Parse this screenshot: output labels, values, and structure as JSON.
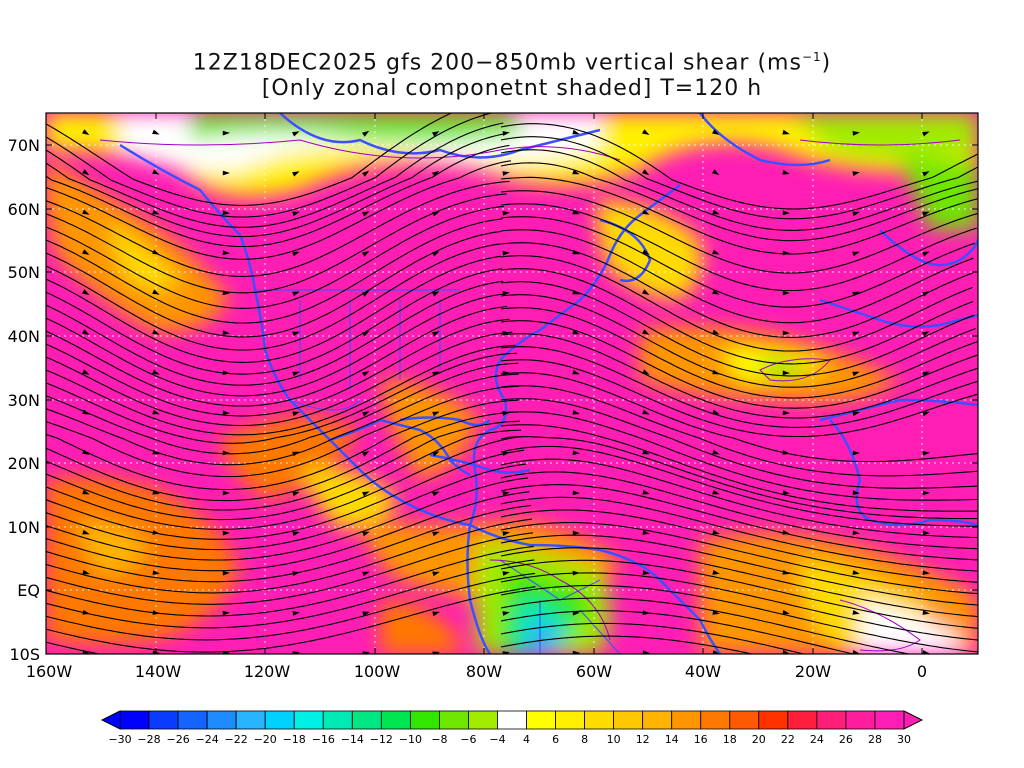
{
  "title": {
    "line1_prefix": "12Z18DEC2025 gfs 200−850mb vertical shear (ms",
    "line1_sup": "−1",
    "line1_suffix": ")",
    "line2": "[Only zonal componetnt shaded] T=120 h"
  },
  "lat_labels": [
    "70N",
    "60N",
    "50N",
    "40N",
    "30N",
    "20N",
    "10N",
    "EQ",
    "10S"
  ],
  "lon_labels": [
    "160W",
    "140W",
    "120W",
    "100W",
    "80W",
    "60W",
    "40W",
    "20W",
    "0"
  ],
  "colorbar": {
    "labels": [
      "-30",
      "-28",
      "-26",
      "-24",
      "-22",
      "-20",
      "-18",
      "-16",
      "-14",
      "-12",
      "-10",
      "-8",
      "-6",
      "-4",
      "4",
      "6",
      "8",
      "10",
      "12",
      "14",
      "16",
      "18",
      "20",
      "22",
      "24",
      "26",
      "28",
      "30"
    ],
    "colors": [
      "#0000ff",
      "#0a3cff",
      "#1464ff",
      "#1e8cff",
      "#28b4ff",
      "#00d2ff",
      "#00f0e6",
      "#00ebb4",
      "#00e682",
      "#00e650",
      "#32e600",
      "#6ee600",
      "#a0eb00",
      "#ffffff",
      "#ffff00",
      "#fff000",
      "#ffdc00",
      "#ffc800",
      "#ffb400",
      "#ff9600",
      "#ff7800",
      "#ff5a00",
      "#ff3200",
      "#ff1e3c",
      "#ff1e78",
      "#ff1e9e",
      "#ff1eb4"
    ],
    "under_color": "#0000ff",
    "over_color": "#ff1eb4"
  },
  "colors": {
    "coastline": "#3c50ff",
    "streamline": "#000000",
    "contour": "#a000c8",
    "grid": "#ffffff"
  }
}
